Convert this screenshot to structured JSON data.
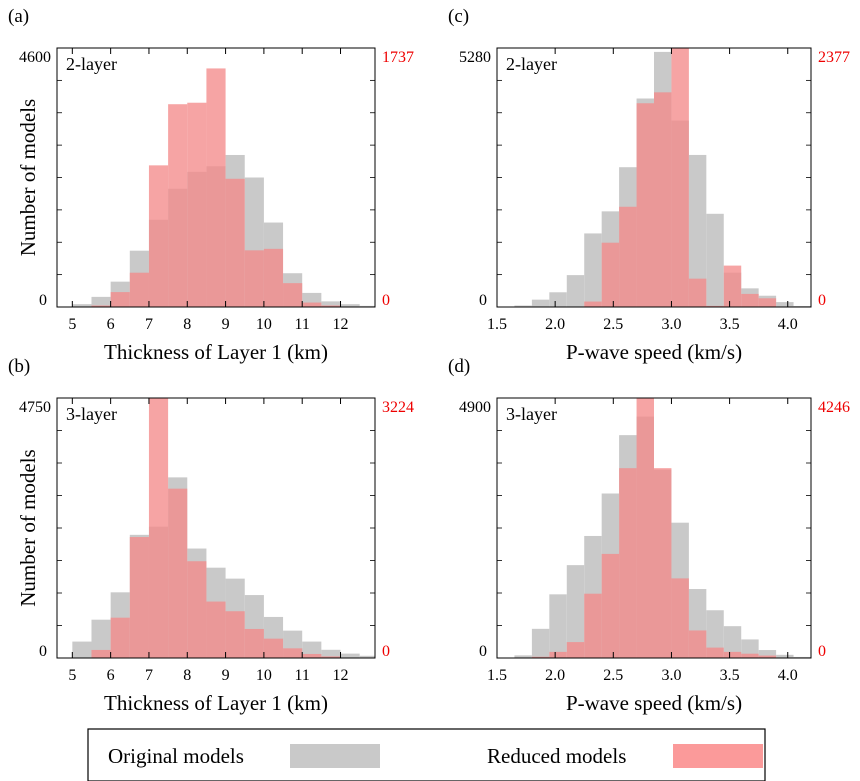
{
  "figure": {
    "ylabel": "Number of models",
    "legend": {
      "original_label": "Original models",
      "reduced_label": "Reduced models",
      "original_color": "#c9c9c9",
      "reduced_color": "#fb9a9a"
    },
    "colors": {
      "original": "#c9c9c9",
      "reduced": "#f38b8b",
      "right_axis_text": "#ee0000"
    }
  },
  "chart_data": [
    {
      "type": "bar",
      "panel_label": "(a)",
      "layer_label": "2-layer",
      "xlabel": "Thickness of Layer 1 (km)",
      "xlim": [
        4.6,
        12.9
      ],
      "xticks": [
        5,
        6,
        7,
        8,
        9,
        10,
        11,
        12
      ],
      "tick_labels": [
        "5",
        "6",
        "7",
        "8",
        "9",
        "10",
        "11",
        "12"
      ],
      "left_axis": {
        "ymax": 4600,
        "top_label": "4600",
        "bottom_label": "0"
      },
      "right_axis": {
        "ymax": 1737,
        "top_label": "1737",
        "bottom_label": "0"
      },
      "bin_width": 0.5,
      "series": [
        {
          "name": "Original models",
          "axis": "left",
          "bins": [
            [
              5.0,
              50
            ],
            [
              5.5,
              180
            ],
            [
              6.0,
              450
            ],
            [
              6.5,
              1000
            ],
            [
              7.0,
              1550
            ],
            [
              7.5,
              2100
            ],
            [
              8.0,
              2400
            ],
            [
              8.5,
              2500
            ],
            [
              9.0,
              2700
            ],
            [
              9.5,
              2300
            ],
            [
              10.0,
              1500
            ],
            [
              10.5,
              600
            ],
            [
              11.0,
              250
            ],
            [
              11.5,
              100
            ],
            [
              12.0,
              50
            ],
            [
              12.5,
              20
            ]
          ]
        },
        {
          "name": "Reduced models",
          "axis": "right",
          "bins": [
            [
              5.5,
              10
            ],
            [
              6.0,
              100
            ],
            [
              6.5,
              230
            ],
            [
              7.0,
              950
            ],
            [
              7.5,
              1360
            ],
            [
              8.0,
              1370
            ],
            [
              8.5,
              1600
            ],
            [
              9.0,
              860
            ],
            [
              9.5,
              380
            ],
            [
              10.0,
              390
            ],
            [
              10.5,
              160
            ],
            [
              11.0,
              30
            ],
            [
              11.5,
              10
            ]
          ]
        }
      ]
    },
    {
      "type": "bar",
      "panel_label": "(b)",
      "layer_label": "3-layer",
      "xlabel": "Thickness of Layer 1 (km)",
      "xlim": [
        4.6,
        12.9
      ],
      "xticks": [
        5,
        6,
        7,
        8,
        9,
        10,
        11,
        12
      ],
      "tick_labels": [
        "5",
        "6",
        "7",
        "8",
        "9",
        "10",
        "11",
        "12"
      ],
      "left_axis": {
        "ymax": 4750,
        "top_label": "4750",
        "bottom_label": "0"
      },
      "right_axis": {
        "ymax": 3224,
        "top_label": "3224",
        "bottom_label": "0"
      },
      "bin_width": 0.5,
      "series": [
        {
          "name": "Original models",
          "axis": "left",
          "bins": [
            [
              5.0,
              300
            ],
            [
              5.5,
              700
            ],
            [
              6.0,
              1200
            ],
            [
              6.5,
              2250
            ],
            [
              7.0,
              2400
            ],
            [
              7.5,
              3300
            ],
            [
              8.0,
              2000
            ],
            [
              8.5,
              1650
            ],
            [
              9.0,
              1450
            ],
            [
              9.5,
              1150
            ],
            [
              10.0,
              750
            ],
            [
              10.5,
              500
            ],
            [
              11.0,
              300
            ],
            [
              11.5,
              150
            ],
            [
              12.0,
              80
            ],
            [
              12.5,
              40
            ]
          ]
        },
        {
          "name": "Reduced models",
          "axis": "right",
          "bins": [
            [
              5.5,
              100
            ],
            [
              6.0,
              500
            ],
            [
              6.5,
              1500
            ],
            [
              7.0,
              3224
            ],
            [
              7.5,
              2100
            ],
            [
              8.0,
              1200
            ],
            [
              8.5,
              700
            ],
            [
              9.0,
              580
            ],
            [
              9.5,
              360
            ],
            [
              10.0,
              240
            ],
            [
              10.5,
              120
            ],
            [
              11.0,
              50
            ],
            [
              11.5,
              20
            ]
          ]
        }
      ]
    },
    {
      "type": "bar",
      "panel_label": "(c)",
      "layer_label": "2-layer",
      "xlabel": "P-wave speed (km/s)",
      "xlim": [
        1.5,
        4.2
      ],
      "xticks": [
        1.5,
        2.0,
        2.5,
        3.0,
        3.5,
        4.0
      ],
      "tick_labels": [
        "1.5",
        "2.0",
        "2.5",
        "3.0",
        "3.5",
        "4.0"
      ],
      "left_axis": {
        "ymax": 5280,
        "top_label": "5280",
        "bottom_label": "0"
      },
      "right_axis": {
        "ymax": 2377,
        "top_label": "2377",
        "bottom_label": "0"
      },
      "bin_width": 0.15,
      "series": [
        {
          "name": "Original models",
          "axis": "left",
          "bins": [
            [
              1.65,
              30
            ],
            [
              1.8,
              150
            ],
            [
              1.95,
              300
            ],
            [
              2.1,
              650
            ],
            [
              2.25,
              1500
            ],
            [
              2.4,
              1950
            ],
            [
              2.55,
              2850
            ],
            [
              2.7,
              4250
            ],
            [
              2.85,
              5200
            ],
            [
              3.0,
              3800
            ],
            [
              3.15,
              3100
            ],
            [
              3.3,
              1900
            ],
            [
              3.45,
              700
            ],
            [
              3.6,
              380
            ],
            [
              3.75,
              230
            ],
            [
              3.9,
              100
            ],
            [
              4.05,
              20
            ]
          ]
        },
        {
          "name": "Reduced models",
          "axis": "right",
          "bins": [
            [
              2.25,
              50
            ],
            [
              2.4,
              590
            ],
            [
              2.55,
              920
            ],
            [
              2.7,
              1870
            ],
            [
              2.85,
              1970
            ],
            [
              3.0,
              2377
            ],
            [
              3.15,
              260
            ],
            [
              3.3,
              10
            ],
            [
              3.45,
              380
            ],
            [
              3.6,
              120
            ],
            [
              3.75,
              80
            ]
          ]
        }
      ]
    },
    {
      "type": "bar",
      "panel_label": "(d)",
      "layer_label": "3-layer",
      "xlabel": "P-wave speed (km/s)",
      "xlim": [
        1.5,
        4.2
      ],
      "xticks": [
        1.5,
        2.0,
        2.5,
        3.0,
        3.5,
        4.0
      ],
      "tick_labels": [
        "1.5",
        "2.0",
        "2.5",
        "3.0",
        "3.5",
        "4.0"
      ],
      "left_axis": {
        "ymax": 4900,
        "top_label": "4900",
        "bottom_label": "0"
      },
      "right_axis": {
        "ymax": 4246,
        "top_label": "4246",
        "bottom_label": "0"
      },
      "bin_width": 0.15,
      "series": [
        {
          "name": "Original models",
          "axis": "left",
          "bins": [
            [
              1.65,
              50
            ],
            [
              1.8,
              550
            ],
            [
              1.95,
              1200
            ],
            [
              2.1,
              1750
            ],
            [
              2.25,
              2300
            ],
            [
              2.4,
              3100
            ],
            [
              2.55,
              4200
            ],
            [
              2.7,
              4550
            ],
            [
              2.85,
              3550
            ],
            [
              3.0,
              2550
            ],
            [
              3.15,
              1300
            ],
            [
              3.3,
              900
            ],
            [
              3.45,
              600
            ],
            [
              3.6,
              350
            ],
            [
              3.75,
              150
            ],
            [
              3.9,
              60
            ],
            [
              4.05,
              20
            ]
          ]
        },
        {
          "name": "Reduced models",
          "axis": "right",
          "bins": [
            [
              1.8,
              20
            ],
            [
              1.95,
              100
            ],
            [
              2.1,
              260
            ],
            [
              2.25,
              1050
            ],
            [
              2.4,
              1700
            ],
            [
              2.55,
              3100
            ],
            [
              2.7,
              4246
            ],
            [
              2.85,
              3100
            ],
            [
              3.0,
              1300
            ],
            [
              3.15,
              450
            ],
            [
              3.3,
              170
            ],
            [
              3.45,
              100
            ],
            [
              3.6,
              70
            ],
            [
              3.75,
              40
            ]
          ]
        }
      ]
    }
  ]
}
